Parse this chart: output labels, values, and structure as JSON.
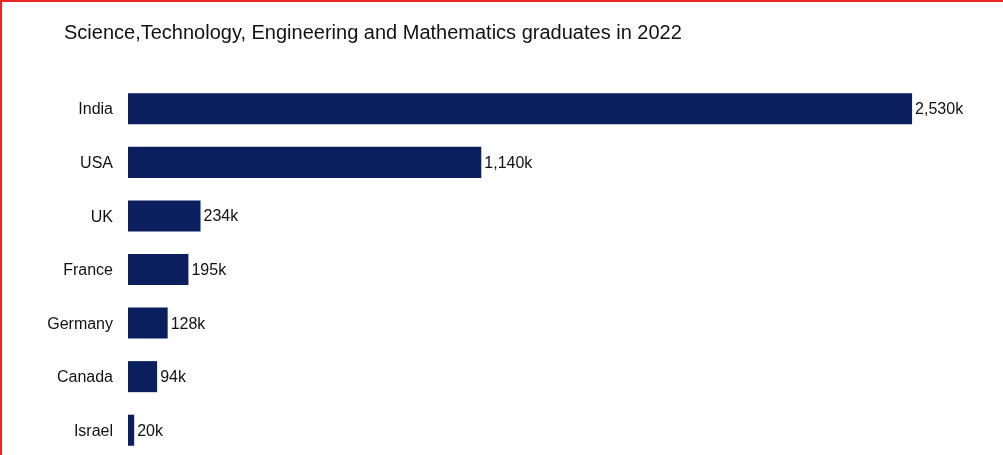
{
  "chart_data": {
    "type": "bar",
    "orientation": "horizontal",
    "title": "Science,Technology, Engineering and Mathematics graduates in 2022",
    "categories": [
      "India",
      "USA",
      "UK",
      "France",
      "Germany",
      "Canada",
      "Israel"
    ],
    "values": [
      2530,
      1140,
      234,
      195,
      128,
      94,
      20
    ],
    "value_labels": [
      "2,530k",
      "1,140k",
      "234k",
      "195k",
      "128k",
      "94k",
      "20k"
    ],
    "color": "#0b1f5e"
  }
}
